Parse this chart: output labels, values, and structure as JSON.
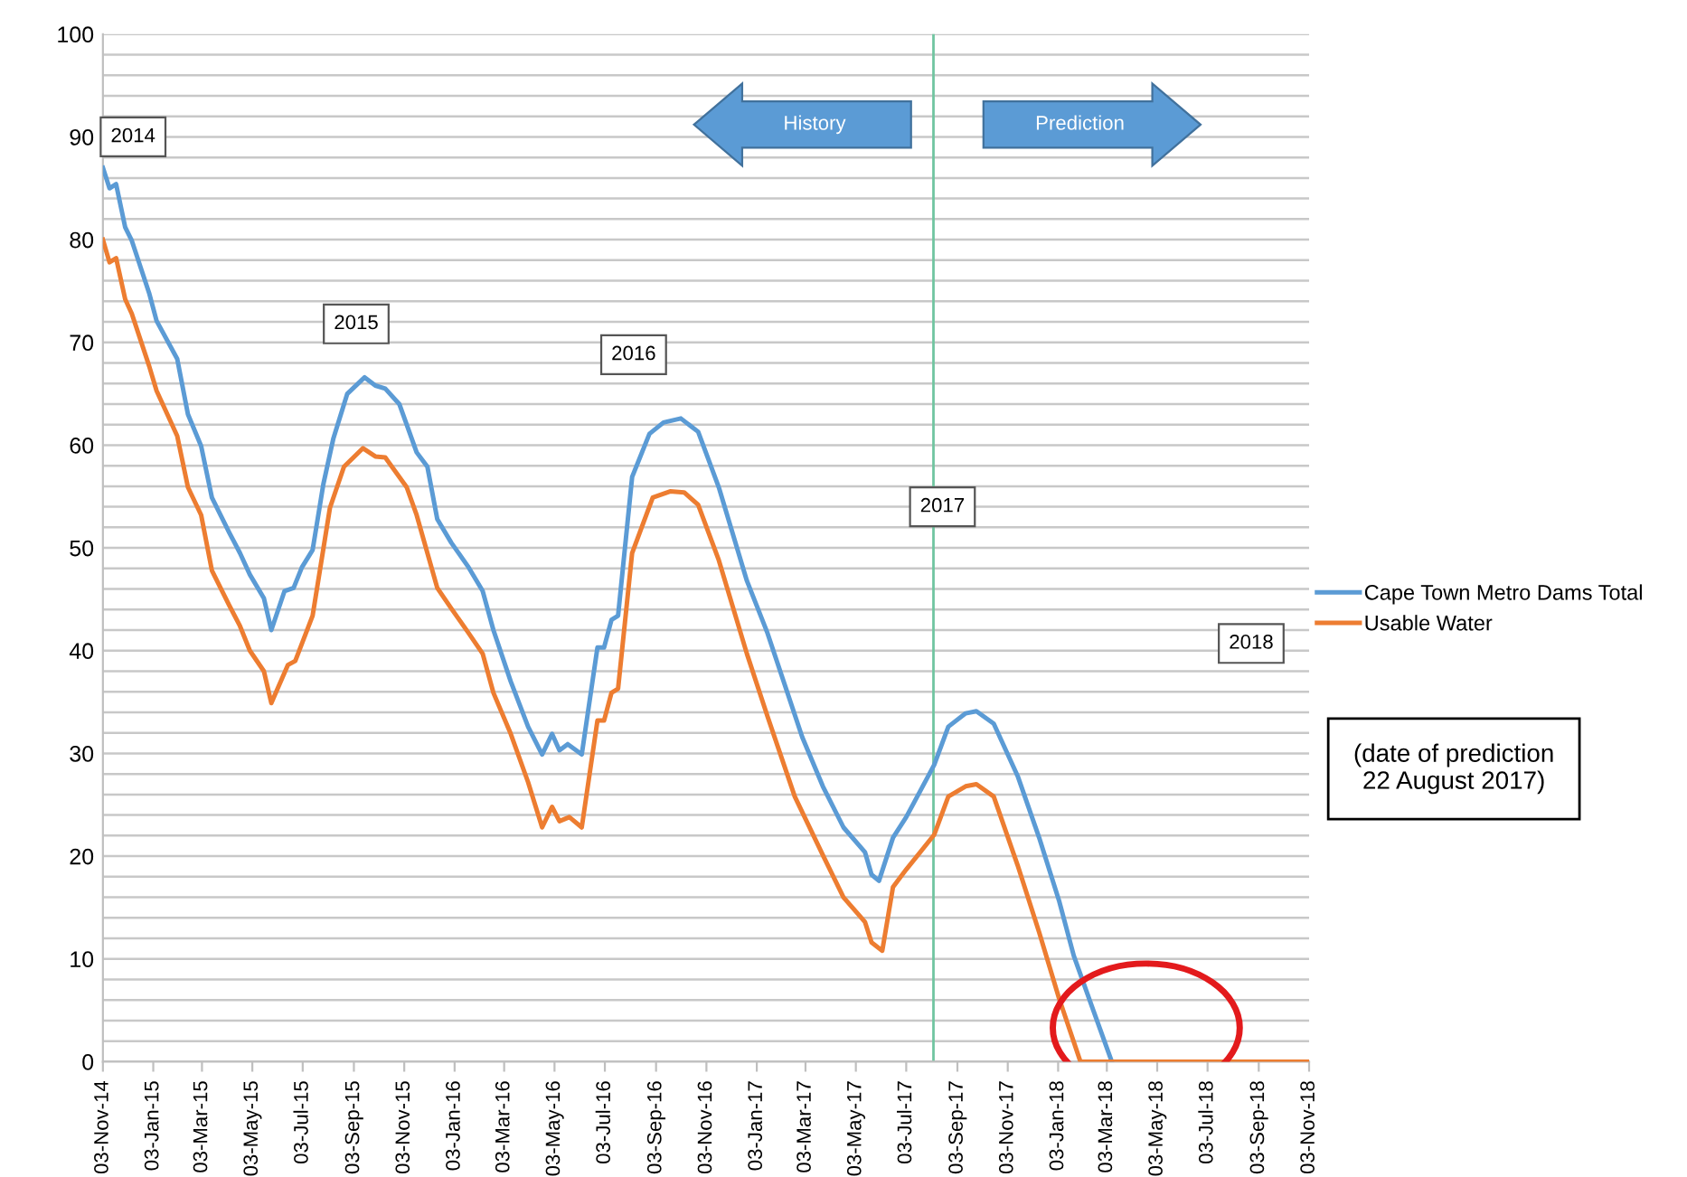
{
  "chart_data": {
    "type": "line",
    "series": [
      {
        "name": "Cape Town Metro Dams Total",
        "color": "#5b9bd5",
        "x": [
          "2014-11-03",
          "2014-11-11",
          "2014-11-19",
          "2014-11-30",
          "2014-12-08",
          "2014-12-29",
          "2015-01-07",
          "2015-02-01",
          "2015-02-14",
          "2015-03-02",
          "2015-03-15",
          "2015-04-05",
          "2015-04-18",
          "2015-04-30",
          "2015-05-17",
          "2015-05-26",
          "2015-06-11",
          "2015-06-22",
          "2015-07-02",
          "2015-07-15",
          "2015-07-28",
          "2015-08-09",
          "2015-08-26",
          "2015-09-16",
          "2015-09-29",
          "2015-10-11",
          "2015-10-28",
          "2015-11-18",
          "2015-12-01",
          "2015-12-13",
          "2015-12-30",
          "2016-01-20",
          "2016-02-06",
          "2016-02-19",
          "2016-03-11",
          "2016-04-01",
          "2016-04-18",
          "2016-04-30",
          "2016-05-09",
          "2016-05-19",
          "2016-06-05",
          "2016-06-24",
          "2016-07-02",
          "2016-07-11",
          "2016-07-19",
          "2016-08-05",
          "2016-08-26",
          "2016-09-12",
          "2016-10-03",
          "2016-10-24",
          "2016-11-18",
          "2016-12-22",
          "2017-01-16",
          "2017-02-27",
          "2017-03-24",
          "2017-04-18",
          "2017-05-14",
          "2017-05-22",
          "2017-05-31",
          "2017-06-17",
          "2017-07-03",
          "2017-08-06",
          "2017-08-23",
          "2017-09-13",
          "2017-09-26",
          "2017-10-17",
          "2017-11-15",
          "2017-12-11",
          "2018-01-04",
          "2018-01-22",
          "2018-02-15",
          "2018-03-09"
        ],
        "values": [
          87.0,
          85.0,
          85.4,
          81.2,
          79.9,
          74.8,
          72.1,
          68.4,
          63.0,
          59.9,
          54.9,
          51.5,
          49.5,
          47.4,
          45.1,
          42.0,
          45.8,
          46.1,
          48.1,
          49.8,
          56.2,
          60.6,
          65.0,
          66.6,
          65.8,
          65.5,
          64.0,
          59.3,
          57.9,
          52.8,
          50.5,
          48.1,
          45.8,
          42.0,
          37.0,
          32.6,
          29.9,
          31.9,
          30.3,
          30.9,
          29.9,
          40.3,
          40.3,
          43.0,
          43.4,
          56.9,
          61.1,
          62.2,
          62.6,
          61.3,
          55.9,
          46.8,
          41.7,
          31.6,
          26.8,
          22.8,
          20.4,
          18.2,
          17.6,
          21.8,
          23.8,
          28.9,
          32.6,
          33.9,
          34.1,
          32.9,
          27.8,
          21.8,
          15.7,
          10.3,
          4.9,
          0
        ]
      },
      {
        "name": "Usable Water",
        "color": "#ed7d31",
        "x": [
          "2014-11-03",
          "2014-11-11",
          "2014-11-19",
          "2014-11-30",
          "2014-12-08",
          "2014-12-29",
          "2015-01-07",
          "2015-02-01",
          "2015-02-14",
          "2015-03-02",
          "2015-03-15",
          "2015-04-05",
          "2015-04-18",
          "2015-04-30",
          "2015-05-17",
          "2015-05-26",
          "2015-06-15",
          "2015-06-24",
          "2015-07-15",
          "2015-08-05",
          "2015-08-22",
          "2015-09-14",
          "2015-09-29",
          "2015-10-11",
          "2015-11-06",
          "2015-11-18",
          "2015-12-13",
          "2015-12-30",
          "2016-01-20",
          "2016-02-06",
          "2016-02-19",
          "2016-03-11",
          "2016-04-01",
          "2016-04-18",
          "2016-04-30",
          "2016-05-09",
          "2016-05-21",
          "2016-06-05",
          "2016-06-24",
          "2016-07-02",
          "2016-07-11",
          "2016-07-19",
          "2016-08-05",
          "2016-08-30",
          "2016-09-20",
          "2016-10-07",
          "2016-10-24",
          "2016-11-18",
          "2016-12-22",
          "2017-01-16",
          "2017-02-18",
          "2017-03-24",
          "2017-04-18",
          "2017-05-14",
          "2017-05-22",
          "2017-06-04",
          "2017-06-17",
          "2017-07-03",
          "2017-08-06",
          "2017-08-23",
          "2017-09-13",
          "2017-09-26",
          "2017-10-17",
          "2017-11-15",
          "2017-12-11",
          "2018-01-04",
          "2018-01-30",
          "2018-11-03"
        ],
        "values": [
          80.0,
          77.8,
          78.2,
          74.2,
          72.8,
          67.7,
          65.3,
          60.9,
          55.9,
          53.2,
          47.8,
          44.4,
          42.4,
          40.0,
          38.0,
          34.9,
          38.6,
          39.0,
          43.4,
          53.9,
          57.9,
          59.7,
          58.9,
          58.8,
          55.9,
          53.2,
          46.1,
          44.1,
          41.7,
          39.7,
          35.9,
          31.9,
          27.2,
          22.8,
          24.8,
          23.4,
          23.8,
          22.8,
          33.2,
          33.2,
          35.9,
          36.3,
          49.5,
          54.9,
          55.5,
          55.4,
          54.2,
          48.8,
          39.7,
          33.6,
          25.8,
          20.1,
          16.0,
          13.6,
          11.6,
          10.8,
          17.0,
          18.7,
          22.1,
          25.8,
          26.8,
          27.0,
          25.8,
          19.1,
          12.6,
          6.2,
          0,
          0
        ]
      }
    ],
    "xlim": [
      "2014-11-03",
      "2018-11-03"
    ],
    "xticks": [
      {
        "value": "2014-11-03",
        "label": "03-Nov-14"
      },
      {
        "value": "2015-01-03",
        "label": "03-Jan-15"
      },
      {
        "value": "2015-03-03",
        "label": "03-Mar-15"
      },
      {
        "value": "2015-05-03",
        "label": "03-May-15"
      },
      {
        "value": "2015-07-03",
        "label": "03-Jul-15"
      },
      {
        "value": "2015-09-03",
        "label": "03-Sep-15"
      },
      {
        "value": "2015-11-03",
        "label": "03-Nov-15"
      },
      {
        "value": "2016-01-03",
        "label": "03-Jan-16"
      },
      {
        "value": "2016-03-03",
        "label": "03-Mar-16"
      },
      {
        "value": "2016-05-03",
        "label": "03-May-16"
      },
      {
        "value": "2016-07-03",
        "label": "03-Jul-16"
      },
      {
        "value": "2016-09-03",
        "label": "03-Sep-16"
      },
      {
        "value": "2016-11-03",
        "label": "03-Nov-16"
      },
      {
        "value": "2017-01-03",
        "label": "03-Jan-17"
      },
      {
        "value": "2017-03-03",
        "label": "03-Mar-17"
      },
      {
        "value": "2017-05-03",
        "label": "03-May-17"
      },
      {
        "value": "2017-07-03",
        "label": "03-Jul-17"
      },
      {
        "value": "2017-09-03",
        "label": "03-Sep-17"
      },
      {
        "value": "2017-11-03",
        "label": "03-Nov-17"
      },
      {
        "value": "2018-01-03",
        "label": "03-Jan-18"
      },
      {
        "value": "2018-03-03",
        "label": "03-Mar-18"
      },
      {
        "value": "2018-05-03",
        "label": "03-May-18"
      },
      {
        "value": "2018-07-03",
        "label": "03-Jul-18"
      },
      {
        "value": "2018-09-03",
        "label": "03-Sep-18"
      },
      {
        "value": "2018-11-03",
        "label": "03-Nov-18"
      }
    ],
    "ylim": [
      0,
      100
    ],
    "yticks": [
      0,
      {
        "value": 2,
        "label": null
      },
      {
        "value": 4,
        "label": null
      },
      {
        "value": 6,
        "label": null
      },
      {
        "value": 8,
        "label": null
      },
      10,
      {
        "value": 12,
        "label": null
      },
      {
        "value": 14,
        "label": null
      },
      {
        "value": 16,
        "label": null
      },
      {
        "value": 18,
        "label": null
      },
      20,
      {
        "value": 22,
        "label": null
      },
      {
        "value": 24,
        "label": null
      },
      {
        "value": 26,
        "label": null
      },
      {
        "value": 28,
        "label": null
      },
      30,
      {
        "value": 32,
        "label": null
      },
      {
        "value": 34,
        "label": null
      },
      {
        "value": 36,
        "label": null
      },
      {
        "value": 38,
        "label": null
      },
      40,
      {
        "value": 42,
        "label": null
      },
      {
        "value": 44,
        "label": null
      },
      {
        "value": 46,
        "label": null
      },
      {
        "value": 48,
        "label": null
      },
      50,
      {
        "value": 52,
        "label": null
      },
      {
        "value": 54,
        "label": null
      },
      {
        "value": 56,
        "label": null
      },
      {
        "value": 58,
        "label": null
      },
      60,
      {
        "value": 62,
        "label": null
      },
      {
        "value": 64,
        "label": null
      },
      {
        "value": 66,
        "label": null
      },
      {
        "value": 68,
        "label": null
      },
      70,
      {
        "value": 72,
        "label": null
      },
      {
        "value": 74,
        "label": null
      },
      {
        "value": 76,
        "label": null
      },
      {
        "value": 78,
        "label": null
      },
      80,
      {
        "value": 82,
        "label": null
      },
      {
        "value": 84,
        "label": null
      },
      {
        "value": 86,
        "label": null
      },
      {
        "value": 88,
        "label": null
      },
      90,
      {
        "value": 92,
        "label": null
      },
      {
        "value": 94,
        "label": null
      },
      {
        "value": 96,
        "label": null
      },
      {
        "value": 98,
        "label": null
      },
      100
    ],
    "ref_lines": [
      {
        "axis": "x",
        "value": "2017-08-05",
        "color": "#70c5a0"
      }
    ],
    "annotations": [
      "2014",
      "2015",
      "2016",
      "2017",
      "2018",
      "History",
      "Prediction",
      "(date of prediction\n22 August 2017)"
    ],
    "grid": "y",
    "legend": "right",
    "marker": "none",
    "line_style": "solid"
  }
}
